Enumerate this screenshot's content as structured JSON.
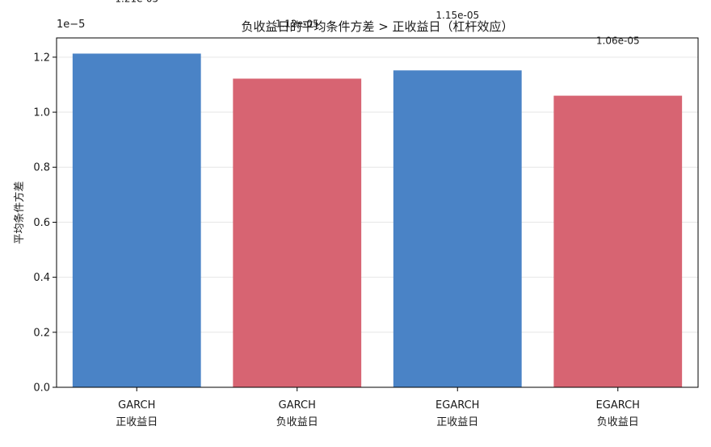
{
  "chart_data": {
    "type": "bar",
    "title": "负收益日的平均条件方差 > 正收益日（杠杆效应）",
    "ylabel": "平均条件方差",
    "xlabel": "",
    "y_offset_label": "1e−5",
    "ylim": [
      0,
      1.27e-05
    ],
    "yticks": [
      0.0,
      0.2,
      0.4,
      0.6,
      0.8,
      1.0,
      1.2
    ],
    "ytick_labels": [
      "0.0",
      "0.2",
      "0.4",
      "0.6",
      "0.8",
      "1.0",
      "1.2"
    ],
    "y_scale": 1e-05,
    "grid": "y",
    "categories": [
      {
        "model": "GARCH",
        "sign": "正收益日"
      },
      {
        "model": "GARCH",
        "sign": "负收益日"
      },
      {
        "model": "EGARCH",
        "sign": "正收益日"
      },
      {
        "model": "EGARCH",
        "sign": "负收益日"
      }
    ],
    "values": [
      1.213e-05,
      1.122e-05,
      1.152e-05,
      1.06e-05
    ],
    "value_labels": [
      "1.21e-05",
      "1.12e-05",
      "1.15e-05",
      "1.06e-05"
    ],
    "colors": [
      "#4a83c6",
      "#d76472",
      "#4a83c6",
      "#d76472"
    ]
  }
}
